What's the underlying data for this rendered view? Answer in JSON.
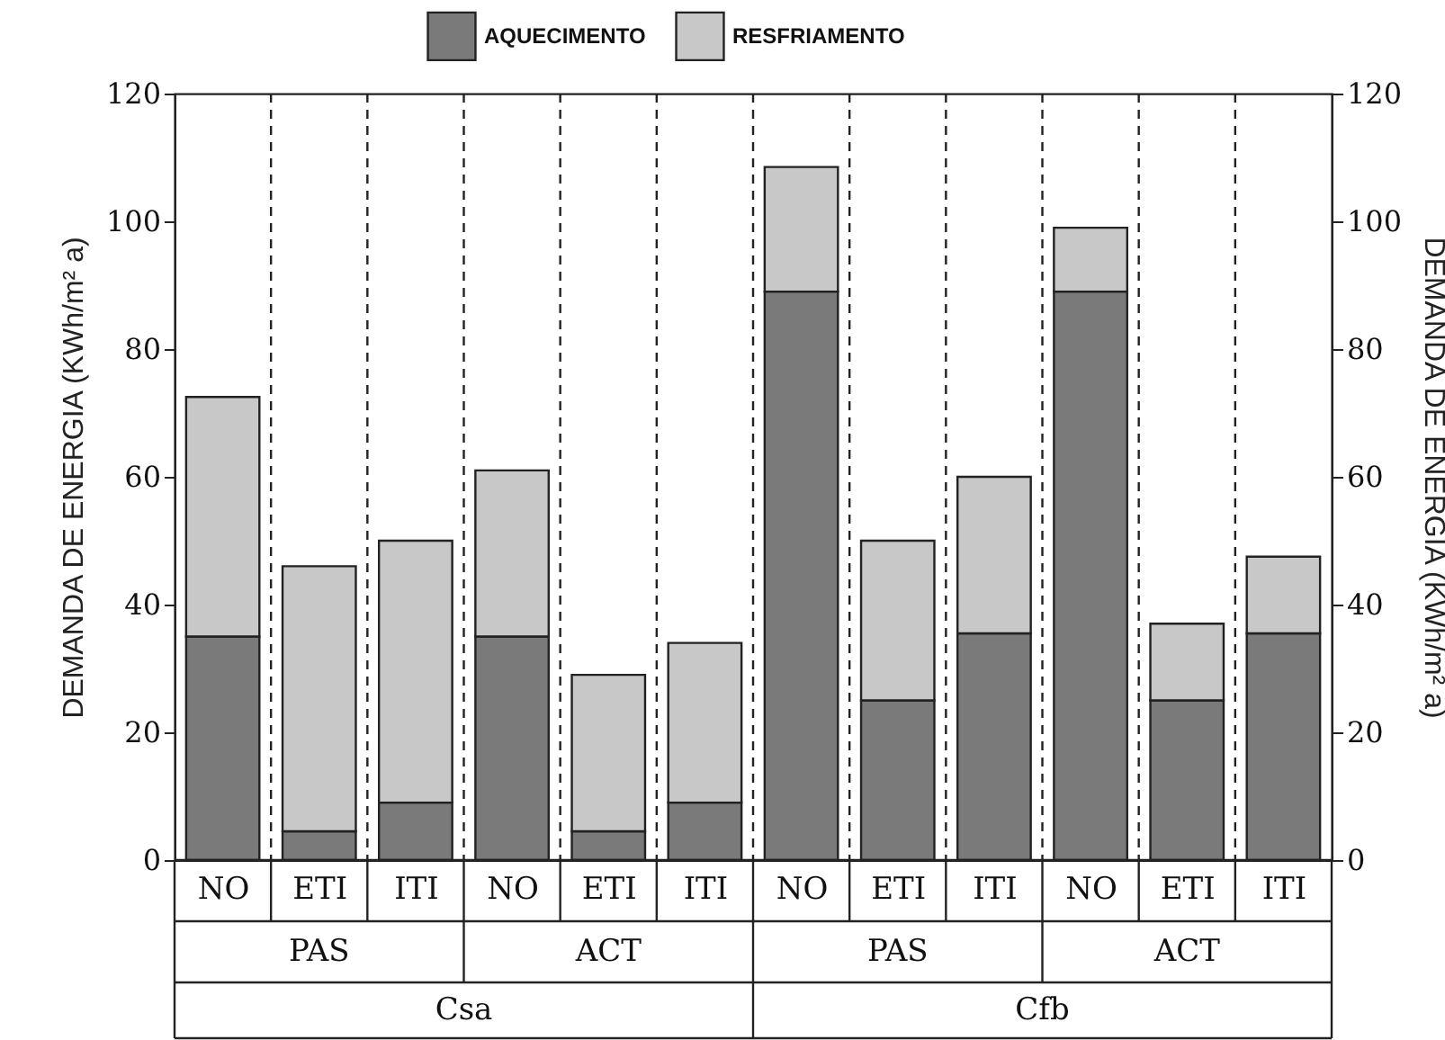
{
  "chart_data": {
    "type": "bar",
    "stacked": true,
    "ylabel": "DEMANDA DE ENERGIA (KWh/m² a)",
    "y2label": "DEMANDA DE ENERGIA (KWh/m² a)",
    "categories": [
      "NO",
      "ETI",
      "ITI",
      "NO",
      "ETI",
      "ITI",
      "NO",
      "ETI",
      "ITI",
      "NO",
      "ETI",
      "ITI"
    ],
    "series": [
      {
        "name": "AQUECIMENTO",
        "color": "#7a7a7a",
        "values": [
          35,
          4.5,
          9,
          35,
          4.5,
          9,
          89,
          25,
          35.5,
          89,
          25,
          35.5
        ]
      },
      {
        "name": "RESFRIAMENTO",
        "color": "#c8c8c8",
        "values": [
          37.5,
          41.5,
          41,
          26,
          24.5,
          25,
          19.5,
          25,
          24.5,
          10,
          12,
          12
        ]
      }
    ],
    "ylim": [
      0,
      120
    ],
    "yticks": [
      0,
      20,
      40,
      60,
      80,
      100,
      120
    ],
    "y2lim": [
      0,
      120
    ],
    "y2ticks": [
      0,
      20,
      40,
      60,
      80,
      100,
      120
    ],
    "grid": "x",
    "legend": "top",
    "annotations": [
      "PAS",
      "ACT",
      "PAS",
      "ACT",
      "Csa",
      "Cfb"
    ]
  }
}
